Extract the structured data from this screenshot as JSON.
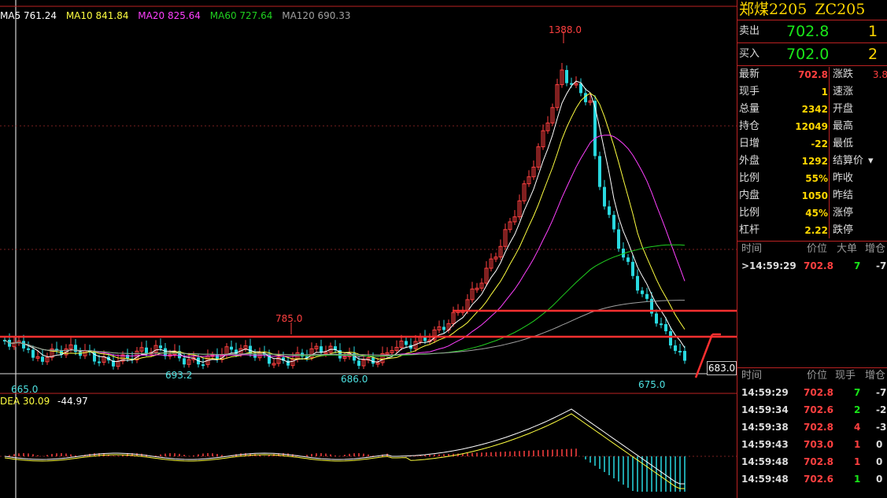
{
  "ma_legend": {
    "ma5": "MA5 761.24",
    "ma10": "MA10 841.84",
    "ma20": "MA20 825.64",
    "ma60": "MA60 727.64",
    "ma120": "MA120 690.33"
  },
  "macd_legend": {
    "dea": "DEA 30.09",
    "macd": "-44.97"
  },
  "chart_labels": {
    "high": "1388.0",
    "mid_high": "785.0",
    "low1": "665.0",
    "low2": "693.2",
    "low3": "686.0",
    "low4": "675.0",
    "last_price": "683.0"
  },
  "colors": {
    "up": "#ff4040",
    "down": "#29d9e0",
    "ma5": "#ffffff",
    "ma10": "#ffff40",
    "ma20": "#ff40ff",
    "ma60": "#20d020",
    "ma120": "#a0a0a0"
  },
  "header": {
    "name": "郑煤2205",
    "code": "ZC205"
  },
  "ask": {
    "label": "卖出",
    "price": "702.8",
    "vol": "1"
  },
  "bid": {
    "label": "买入",
    "price": "702.0",
    "vol": "2"
  },
  "stats": [
    {
      "l1": "最新",
      "v1": "702.8",
      "c1": "red",
      "l2": "涨跌",
      "v2": "3.8"
    },
    {
      "l1": "现手",
      "v1": "1",
      "c1": "yellow",
      "l2": "速涨",
      "v2": ""
    },
    {
      "l1": "总量",
      "v1": "2342",
      "c1": "yellow",
      "l2": "开盘",
      "v2": ""
    },
    {
      "l1": "持仓",
      "v1": "12049",
      "c1": "yellow",
      "l2": "最高",
      "v2": ""
    },
    {
      "l1": "日增",
      "v1": "-22",
      "c1": "yellow",
      "l2": "最低",
      "v2": ""
    },
    {
      "l1": "外盘",
      "v1": "1292",
      "c1": "yellow",
      "l2": "结算价",
      "v2": ""
    },
    {
      "l1": "比例",
      "v1": "55%",
      "c1": "yellow",
      "l2": "昨收",
      "v2": ""
    },
    {
      "l1": "内盘",
      "v1": "1050",
      "c1": "yellow",
      "l2": "昨结",
      "v2": ""
    },
    {
      "l1": "比例",
      "v1": "45%",
      "c1": "yellow",
      "l2": "涨停",
      "v2": ""
    },
    {
      "l1": "杠杆",
      "v1": "2.22",
      "c1": "yellow",
      "l2": "跌停",
      "v2": ""
    }
  ],
  "big_orders": {
    "headers": {
      "time": "时间",
      "price": "价位",
      "vol": "大单",
      "chg": "增仓"
    },
    "rows": [
      {
        "time": ">14:59:29",
        "price": "702.8",
        "vol": "7",
        "chg": "-7"
      }
    ]
  },
  "ticks": {
    "headers": {
      "time": "时间",
      "price": "价位",
      "vol": "现手",
      "chg": "增仓"
    },
    "rows": [
      {
        "time": "14:59:29",
        "price": "702.8",
        "vol": "7",
        "vcolor": "green",
        "chg": "-7"
      },
      {
        "time": "14:59:34",
        "price": "702.6",
        "vol": "2",
        "vcolor": "green",
        "chg": "-2"
      },
      {
        "time": "14:59:38",
        "price": "702.8",
        "vol": "4",
        "vcolor": "red",
        "chg": "-3"
      },
      {
        "time": "14:59:43",
        "price": "703.0",
        "vol": "1",
        "vcolor": "red",
        "chg": "0"
      },
      {
        "time": "14:59:48",
        "price": "702.8",
        "vol": "1",
        "vcolor": "red",
        "chg": "0"
      },
      {
        "time": "14:59:48",
        "price": "702.6",
        "vol": "1",
        "vcolor": "green",
        "chg": "0"
      }
    ]
  }
}
